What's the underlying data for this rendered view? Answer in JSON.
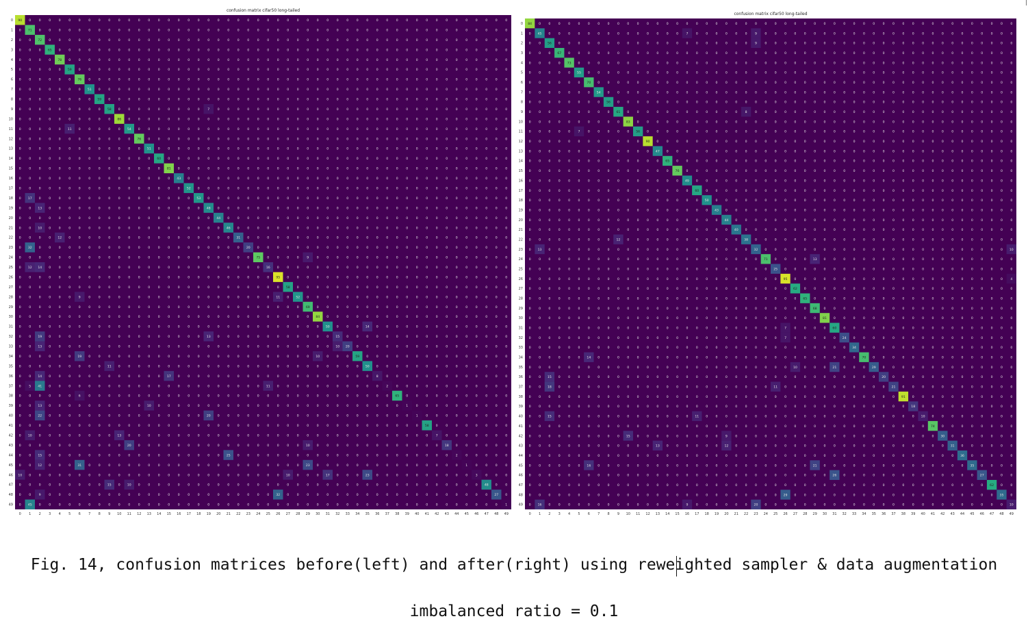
{
  "chart_data": [
    {
      "type": "heatmap",
      "panel": "left",
      "title": "confusion matrix cifar50 long-tailed",
      "xlabel": "",
      "ylabel": "",
      "n_classes": 50,
      "tick_labels": [
        "0",
        "1",
        "2",
        "3",
        "4",
        "5",
        "6",
        "7",
        "8",
        "9",
        "10",
        "11",
        "12",
        "13",
        "14",
        "15",
        "16",
        "17",
        "18",
        "19",
        "20",
        "21",
        "22",
        "23",
        "24",
        "25",
        "26",
        "27",
        "28",
        "29",
        "30",
        "31",
        "32",
        "33",
        "34",
        "35",
        "36",
        "37",
        "38",
        "39",
        "40",
        "41",
        "42",
        "43",
        "44",
        "45",
        "46",
        "47",
        "48",
        "49"
      ],
      "colormap": "viridis",
      "value_range": [
        0,
        100
      ],
      "diagonal": [
        90,
        71,
        72,
        65,
        78,
        59,
        76,
        51,
        59,
        58,
        86,
        54,
        76,
        51,
        60,
        81,
        43,
        52,
        53,
        48,
        44,
        46,
        31,
        20,
        75,
        16,
        95,
        58,
        52,
        69,
        84,
        50,
        15,
        20,
        59,
        50,
        8,
        2,
        65,
        1,
        1,
        58,
        7,
        18,
        2,
        1,
        3,
        48,
        27,
        1
      ],
      "off_diagonal_notable": [
        {
          "row": 24,
          "col": 29,
          "value": 9
        },
        {
          "row": 25,
          "col": 1,
          "value": 12
        },
        {
          "row": 25,
          "col": 2,
          "value": 14
        },
        {
          "row": 32,
          "col": 2,
          "value": 19
        },
        {
          "row": 32,
          "col": 19,
          "value": 13
        },
        {
          "row": 33,
          "col": 2,
          "value": 13
        },
        {
          "row": 33,
          "col": 32,
          "value": 10
        },
        {
          "row": 34,
          "col": 6,
          "value": 19
        },
        {
          "row": 34,
          "col": 30,
          "value": 10
        },
        {
          "row": 36,
          "col": 2,
          "value": 14
        },
        {
          "row": 36,
          "col": 15,
          "value": 17
        },
        {
          "row": 37,
          "col": 1,
          "value": 5
        },
        {
          "row": 37,
          "col": 2,
          "value": 41
        },
        {
          "row": 37,
          "col": 25,
          "value": 11
        },
        {
          "row": 39,
          "col": 2,
          "value": 13
        },
        {
          "row": 39,
          "col": 13,
          "value": 10
        },
        {
          "row": 40,
          "col": 2,
          "value": 22
        },
        {
          "row": 40,
          "col": 19,
          "value": 20
        },
        {
          "row": 42,
          "col": 1,
          "value": 10
        },
        {
          "row": 42,
          "col": 10,
          "value": 13
        },
        {
          "row": 43,
          "col": 11,
          "value": 20
        },
        {
          "row": 43,
          "col": 29,
          "value": 10
        },
        {
          "row": 44,
          "col": 2,
          "value": 15
        },
        {
          "row": 44,
          "col": 21,
          "value": 25
        },
        {
          "row": 45,
          "col": 2,
          "value": 12
        },
        {
          "row": 45,
          "col": 6,
          "value": 31
        },
        {
          "row": 45,
          "col": 29,
          "value": 23
        },
        {
          "row": 46,
          "col": 0,
          "value": 10
        },
        {
          "row": 46,
          "col": 27,
          "value": 10
        },
        {
          "row": 46,
          "col": 31,
          "value": 17
        },
        {
          "row": 46,
          "col": 35,
          "value": 23
        },
        {
          "row": 47,
          "col": 9,
          "value": 15
        },
        {
          "row": 47,
          "col": 11,
          "value": 10
        },
        {
          "row": 48,
          "col": 2,
          "value": 9
        },
        {
          "row": 48,
          "col": 26,
          "value": 32
        },
        {
          "row": 49,
          "col": 1,
          "value": 45
        },
        {
          "row": 23,
          "col": 1,
          "value": 32
        },
        {
          "row": 19,
          "col": 2,
          "value": 13
        },
        {
          "row": 18,
          "col": 1,
          "value": 17
        },
        {
          "row": 21,
          "col": 2,
          "value": 10
        },
        {
          "row": 22,
          "col": 4,
          "value": 12
        },
        {
          "row": 35,
          "col": 9,
          "value": 11
        },
        {
          "row": 38,
          "col": 6,
          "value": 6
        },
        {
          "row": 31,
          "col": 35,
          "value": 14
        },
        {
          "row": 28,
          "col": 6,
          "value": 9
        },
        {
          "row": 28,
          "col": 26,
          "value": 11
        },
        {
          "row": 9,
          "col": 19,
          "value": 7
        },
        {
          "row": 11,
          "col": 5,
          "value": 11
        }
      ]
    },
    {
      "type": "heatmap",
      "panel": "right",
      "title": "confusion matrix cifar50 long-tailed",
      "xlabel": "",
      "ylabel": "",
      "n_classes": 50,
      "tick_labels": [
        "0",
        "1",
        "2",
        "3",
        "4",
        "5",
        "6",
        "7",
        "8",
        "9",
        "10",
        "11",
        "12",
        "13",
        "14",
        "15",
        "16",
        "17",
        "18",
        "19",
        "20",
        "21",
        "22",
        "23",
        "24",
        "25",
        "26",
        "27",
        "28",
        "29",
        "30",
        "31",
        "32",
        "33",
        "34",
        "35",
        "36",
        "37",
        "38",
        "39",
        "40",
        "41",
        "42",
        "43",
        "44",
        "45",
        "46",
        "47",
        "48",
        "49"
      ],
      "colormap": "viridis",
      "value_range": [
        0,
        100
      ],
      "diagonal": [
        84,
        45,
        56,
        67,
        73,
        55,
        70,
        54,
        56,
        61,
        83,
        56,
        90,
        47,
        65,
        76,
        49,
        60,
        50,
        43,
        44,
        40,
        38,
        32,
        71,
        25,
        95,
        62,
        65,
        68,
        81,
        60,
        24,
        34,
        70,
        29,
        20,
        21,
        91,
        18,
        10,
        74,
        30,
        31,
        36,
        35,
        27,
        62,
        35,
        10
      ],
      "off_diagonal_notable": [
        {
          "row": 1,
          "col": 16,
          "value": 7
        },
        {
          "row": 1,
          "col": 23,
          "value": 9
        },
        {
          "row": 2,
          "col": 23,
          "value": 9
        },
        {
          "row": 22,
          "col": 9,
          "value": 12
        },
        {
          "row": 23,
          "col": 1,
          "value": 13
        },
        {
          "row": 23,
          "col": 49,
          "value": 10
        },
        {
          "row": 24,
          "col": 29,
          "value": 13
        },
        {
          "row": 31,
          "col": 26,
          "value": 7
        },
        {
          "row": 32,
          "col": 26,
          "value": 7
        },
        {
          "row": 34,
          "col": 6,
          "value": 14
        },
        {
          "row": 35,
          "col": 27,
          "value": 10
        },
        {
          "row": 35,
          "col": 31,
          "value": 21
        },
        {
          "row": 36,
          "col": 2,
          "value": 15
        },
        {
          "row": 37,
          "col": 2,
          "value": 18
        },
        {
          "row": 37,
          "col": 25,
          "value": 11
        },
        {
          "row": 40,
          "col": 2,
          "value": 15
        },
        {
          "row": 40,
          "col": 17,
          "value": 11
        },
        {
          "row": 42,
          "col": 10,
          "value": 15
        },
        {
          "row": 42,
          "col": 20,
          "value": 9
        },
        {
          "row": 43,
          "col": 13,
          "value": 13
        },
        {
          "row": 43,
          "col": 20,
          "value": 12
        },
        {
          "row": 45,
          "col": 6,
          "value": 16
        },
        {
          "row": 45,
          "col": 29,
          "value": 21
        },
        {
          "row": 46,
          "col": 31,
          "value": 26
        },
        {
          "row": 48,
          "col": 26,
          "value": 29
        },
        {
          "row": 49,
          "col": 1,
          "value": 16
        },
        {
          "row": 49,
          "col": 16,
          "value": 9
        },
        {
          "row": 49,
          "col": 23,
          "value": 20
        },
        {
          "row": 26,
          "col": 49,
          "value": 4
        },
        {
          "row": 9,
          "col": 22,
          "value": 8
        },
        {
          "row": 11,
          "col": 5,
          "value": 7
        }
      ]
    }
  ],
  "caption": {
    "line1": "Fig. 14, confusion matrices before(left) and after(right) using reweighted sampler & data augmentation",
    "line2": "imbalanced ratio = 0.1"
  }
}
